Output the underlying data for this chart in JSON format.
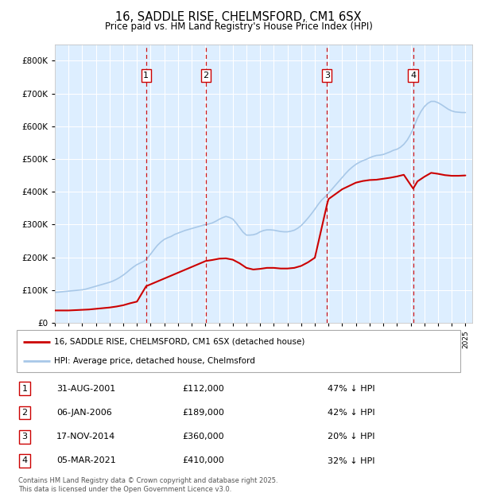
{
  "title": "16, SADDLE RISE, CHELMSFORD, CM1 6SX",
  "subtitle": "Price paid vs. HM Land Registry's House Price Index (HPI)",
  "legend_line1": "16, SADDLE RISE, CHELMSFORD, CM1 6SX (detached house)",
  "legend_line2": "HPI: Average price, detached house, Chelmsford",
  "footer": "Contains HM Land Registry data © Crown copyright and database right 2025.\nThis data is licensed under the Open Government Licence v3.0.",
  "transactions": [
    {
      "num": 1,
      "date": "31-AUG-2001",
      "price": 112000,
      "pct": "47%",
      "x_year": 2001.67
    },
    {
      "num": 2,
      "date": "06-JAN-2006",
      "price": 189000,
      "pct": "42%",
      "x_year": 2006.03
    },
    {
      "num": 3,
      "date": "17-NOV-2014",
      "price": 360000,
      "pct": "20%",
      "x_year": 2014.88
    },
    {
      "num": 4,
      "date": "05-MAR-2021",
      "price": 410000,
      "pct": "32%",
      "x_year": 2021.18
    }
  ],
  "hpi_color": "#a8c8e8",
  "price_color": "#cc0000",
  "transaction_line_color": "#cc0000",
  "background_color": "#ffffff",
  "plot_bg_color": "#ddeeff",
  "grid_color": "#ffffff",
  "ylim": [
    0,
    850000
  ],
  "yticks": [
    0,
    100000,
    200000,
    300000,
    400000,
    500000,
    600000,
    700000,
    800000
  ],
  "xlim_start": 1995,
  "xlim_end": 2025.5,
  "hpi_data_x": [
    1995.0,
    1995.25,
    1995.5,
    1995.75,
    1996.0,
    1996.25,
    1996.5,
    1996.75,
    1997.0,
    1997.25,
    1997.5,
    1997.75,
    1998.0,
    1998.25,
    1998.5,
    1998.75,
    1999.0,
    1999.25,
    1999.5,
    1999.75,
    2000.0,
    2000.25,
    2000.5,
    2000.75,
    2001.0,
    2001.25,
    2001.5,
    2001.75,
    2002.0,
    2002.25,
    2002.5,
    2002.75,
    2003.0,
    2003.25,
    2003.5,
    2003.75,
    2004.0,
    2004.25,
    2004.5,
    2004.75,
    2005.0,
    2005.25,
    2005.5,
    2005.75,
    2006.0,
    2006.25,
    2006.5,
    2006.75,
    2007.0,
    2007.25,
    2007.5,
    2007.75,
    2008.0,
    2008.25,
    2008.5,
    2008.75,
    2009.0,
    2009.25,
    2009.5,
    2009.75,
    2010.0,
    2010.25,
    2010.5,
    2010.75,
    2011.0,
    2011.25,
    2011.5,
    2011.75,
    2012.0,
    2012.25,
    2012.5,
    2012.75,
    2013.0,
    2013.25,
    2013.5,
    2013.75,
    2014.0,
    2014.25,
    2014.5,
    2014.75,
    2015.0,
    2015.25,
    2015.5,
    2015.75,
    2016.0,
    2016.25,
    2016.5,
    2016.75,
    2017.0,
    2017.25,
    2017.5,
    2017.75,
    2018.0,
    2018.25,
    2018.5,
    2018.75,
    2019.0,
    2019.25,
    2019.5,
    2019.75,
    2020.0,
    2020.25,
    2020.5,
    2020.75,
    2021.0,
    2021.25,
    2021.5,
    2021.75,
    2022.0,
    2022.25,
    2022.5,
    2022.75,
    2023.0,
    2023.25,
    2023.5,
    2023.75,
    2024.0,
    2024.25,
    2024.5,
    2024.75,
    2025.0
  ],
  "hpi_data_y": [
    93000,
    94000,
    95000,
    96000,
    97000,
    98000,
    99000,
    100000,
    101000,
    103000,
    106000,
    109000,
    112000,
    115000,
    118000,
    121000,
    124000,
    128000,
    133000,
    139000,
    146000,
    154000,
    163000,
    171000,
    178000,
    183000,
    188000,
    197000,
    210000,
    224000,
    237000,
    247000,
    255000,
    260000,
    264000,
    270000,
    274000,
    278000,
    282000,
    285000,
    288000,
    291000,
    294000,
    297000,
    300000,
    302000,
    305000,
    310000,
    316000,
    321000,
    325000,
    322000,
    317000,
    305000,
    291000,
    277000,
    268000,
    268000,
    269000,
    272000,
    278000,
    282000,
    284000,
    284000,
    283000,
    281000,
    279000,
    278000,
    278000,
    280000,
    283000,
    289000,
    297000,
    308000,
    320000,
    333000,
    347000,
    362000,
    375000,
    385000,
    396000,
    408000,
    420000,
    432000,
    444000,
    456000,
    467000,
    476000,
    484000,
    490000,
    495000,
    499000,
    504000,
    508000,
    511000,
    512000,
    514000,
    518000,
    522000,
    527000,
    530000,
    536000,
    545000,
    558000,
    576000,
    600000,
    625000,
    645000,
    660000,
    670000,
    676000,
    676000,
    672000,
    666000,
    659000,
    652000,
    647000,
    644000,
    643000,
    642000,
    642000
  ],
  "price_data_x": [
    1995.0,
    1995.5,
    1996.0,
    1996.5,
    1997.0,
    1997.5,
    1998.0,
    1998.5,
    1999.0,
    1999.5,
    2000.0,
    2000.5,
    2001.0,
    2001.67,
    2006.03,
    2006.5,
    2007.0,
    2007.5,
    2008.0,
    2008.5,
    2009.0,
    2009.5,
    2010.0,
    2010.5,
    2011.0,
    2011.5,
    2012.0,
    2012.5,
    2013.0,
    2013.5,
    2014.0,
    2014.88,
    2015.0,
    2015.5,
    2016.0,
    2016.5,
    2017.0,
    2017.5,
    2018.0,
    2018.5,
    2019.0,
    2019.5,
    2020.0,
    2020.5,
    2021.18,
    2021.5,
    2022.0,
    2022.5,
    2023.0,
    2023.5,
    2024.0,
    2024.5,
    2025.0
  ],
  "price_data_y": [
    38000,
    38000,
    38000,
    39000,
    40000,
    41000,
    43000,
    45000,
    47000,
    50000,
    54000,
    60000,
    65000,
    112000,
    189000,
    192000,
    196000,
    197000,
    193000,
    182000,
    168000,
    163000,
    165000,
    168000,
    168000,
    166000,
    166000,
    168000,
    174000,
    185000,
    199000,
    360000,
    378000,
    393000,
    408000,
    418000,
    428000,
    433000,
    436000,
    437000,
    440000,
    443000,
    447000,
    452000,
    410000,
    432000,
    446000,
    458000,
    455000,
    451000,
    449000,
    449000,
    450000
  ]
}
